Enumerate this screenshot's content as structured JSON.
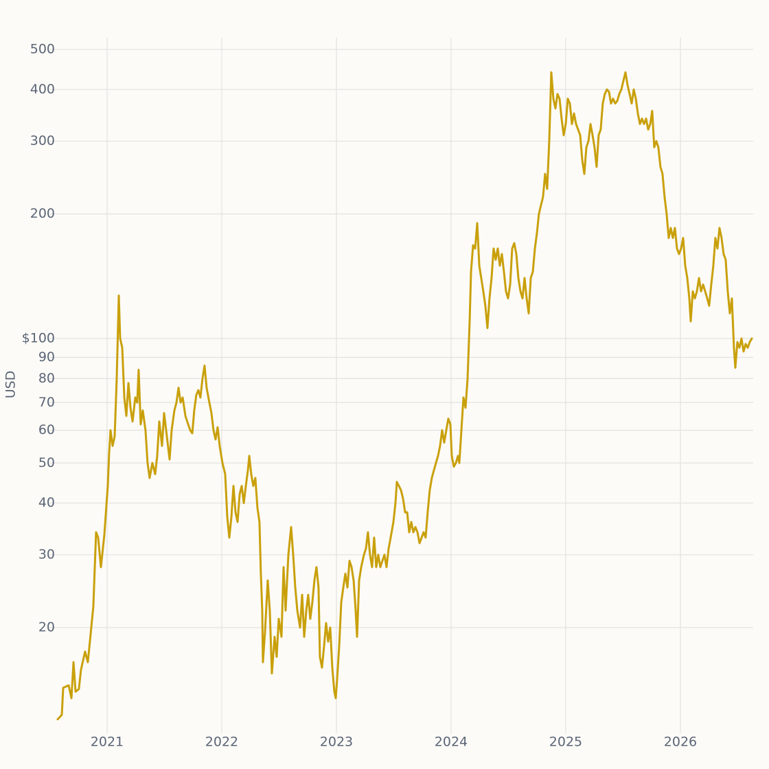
{
  "chart_data": {
    "type": "line",
    "y_label": "USD",
    "log_y": true,
    "grid": true,
    "color": "#c9a00c",
    "xlim": [
      2020.569,
      2026.635
    ],
    "xticks": [
      2021,
      2022,
      2023,
      2024,
      2025,
      2026
    ],
    "ylim": [
      11.36,
      533.4
    ],
    "yticks": [
      20,
      30,
      40,
      50,
      60,
      70,
      80,
      90,
      {
        "value": 100,
        "label": "$100"
      },
      200,
      300,
      400,
      500
    ],
    "x": [
      2020.569,
      2020.605,
      2020.617,
      2020.665,
      2020.689,
      2020.707,
      2020.725,
      2020.754,
      2020.772,
      2020.808,
      2020.832,
      2020.85,
      2020.88,
      2020.904,
      2020.922,
      2020.946,
      2020.976,
      2021.006,
      2021.018,
      2021.03,
      2021.048,
      2021.066,
      2021.084,
      2021.102,
      2021.114,
      2021.132,
      2021.15,
      2021.168,
      2021.186,
      2021.204,
      2021.222,
      2021.246,
      2021.263,
      2021.275,
      2021.293,
      2021.311,
      2021.335,
      2021.353,
      2021.371,
      2021.395,
      2021.419,
      2021.437,
      2021.455,
      2021.479,
      2021.497,
      2021.515,
      2021.545,
      2021.563,
      2021.587,
      2021.605,
      2021.623,
      2021.641,
      2021.659,
      2021.683,
      2021.707,
      2021.725,
      2021.743,
      2021.76,
      2021.778,
      2021.796,
      2021.814,
      2021.832,
      2021.85,
      2021.868,
      2021.892,
      2021.91,
      2021.928,
      2021.946,
      2021.964,
      2021.982,
      2022.006,
      2022.03,
      2022.048,
      2022.066,
      2022.084,
      2022.102,
      2022.12,
      2022.138,
      2022.156,
      2022.174,
      2022.192,
      2022.21,
      2022.228,
      2022.24,
      2022.257,
      2022.275,
      2022.293,
      2022.311,
      2022.329,
      2022.341,
      2022.353,
      2022.359,
      2022.377,
      2022.401,
      2022.419,
      2022.437,
      2022.461,
      2022.479,
      2022.497,
      2022.521,
      2022.539,
      2022.557,
      2022.581,
      2022.605,
      2022.623,
      2022.641,
      2022.659,
      2022.683,
      2022.701,
      2022.719,
      2022.737,
      2022.754,
      2022.772,
      2022.79,
      2022.808,
      2022.826,
      2022.844,
      2022.856,
      2022.874,
      2022.892,
      2022.91,
      2022.928,
      2022.946,
      2022.964,
      2022.982,
      2022.994,
      2023.006,
      2023.024,
      2023.042,
      2023.06,
      2023.078,
      2023.096,
      2023.114,
      2023.132,
      2023.15,
      2023.168,
      2023.18,
      2023.198,
      2023.216,
      2023.24,
      2023.257,
      2023.275,
      2023.293,
      2023.311,
      2023.329,
      2023.347,
      2023.365,
      2023.383,
      2023.401,
      2023.419,
      2023.437,
      2023.455,
      2023.473,
      2023.497,
      2023.515,
      2023.527,
      2023.545,
      2023.563,
      2023.581,
      2023.599,
      2023.617,
      2023.635,
      2023.653,
      2023.671,
      2023.689,
      2023.707,
      2023.725,
      2023.743,
      2023.76,
      2023.778,
      2023.796,
      2023.814,
      2023.832,
      2023.85,
      2023.868,
      2023.886,
      2023.904,
      2023.922,
      2023.94,
      2023.958,
      2023.976,
      2023.994,
      2024.006,
      2024.024,
      2024.042,
      2024.06,
      2024.072,
      2024.09,
      2024.108,
      2024.126,
      2024.144,
      2024.162,
      2024.174,
      2024.192,
      2024.21,
      2024.228,
      2024.246,
      2024.263,
      2024.281,
      2024.299,
      2024.317,
      2024.335,
      2024.353,
      2024.371,
      2024.389,
      2024.407,
      2024.425,
      2024.443,
      2024.461,
      2024.479,
      2024.497,
      2024.515,
      2024.533,
      2024.551,
      2024.569,
      2024.587,
      2024.605,
      2024.623,
      2024.641,
      2024.659,
      2024.677,
      2024.695,
      2024.713,
      2024.731,
      2024.749,
      2024.766,
      2024.784,
      2024.802,
      2024.82,
      2024.838,
      2024.856,
      2024.874,
      2024.892,
      2024.91,
      2024.928,
      2024.946,
      2024.964,
      2024.982,
      2025.0,
      2025.018,
      2025.036,
      2025.054,
      2025.072,
      2025.09,
      2025.108,
      2025.126,
      2025.144,
      2025.162,
      2025.18,
      2025.198,
      2025.216,
      2025.234,
      2025.251,
      2025.269,
      2025.287,
      2025.305,
      2025.323,
      2025.341,
      2025.359,
      2025.377,
      2025.395,
      2025.413,
      2025.431,
      2025.449,
      2025.467,
      2025.485,
      2025.503,
      2025.521,
      2025.539,
      2025.557,
      2025.575,
      2025.593,
      2025.611,
      2025.629,
      2025.647,
      2025.665,
      2025.683,
      2025.701,
      2025.719,
      2025.737,
      2025.754,
      2025.772,
      2025.79,
      2025.808,
      2025.826,
      2025.844,
      2025.862,
      2025.88,
      2025.898,
      2025.916,
      2025.934,
      2025.952,
      2025.97,
      2025.988,
      2026.006,
      2026.024,
      2026.042,
      2026.06,
      2026.078,
      2026.09,
      2026.108,
      2026.126,
      2026.144,
      2026.162,
      2026.18,
      2026.198,
      2026.216,
      2026.234,
      2026.251,
      2026.269,
      2026.287,
      2026.305,
      2026.323,
      2026.341,
      2026.359,
      2026.377,
      2026.395,
      2026.413,
      2026.431,
      2026.449,
      2026.467,
      2026.479,
      2026.497,
      2026.515,
      2026.533,
      2026.551,
      2026.569,
      2026.587,
      2026.605,
      2026.623
    ],
    "values": [
      12,
      12.3,
      14.3,
      14.5,
      13.5,
      16.5,
      14,
      14.2,
      15.8,
      17.5,
      16.5,
      18.5,
      22.5,
      34,
      33,
      28,
      33.5,
      44,
      53,
      60,
      55,
      58,
      80,
      127,
      100,
      95,
      72,
      65,
      78,
      68,
      63,
      72,
      70,
      84,
      62,
      67,
      60,
      50,
      46,
      50,
      47,
      52,
      63,
      55,
      66,
      60,
      51,
      60,
      67,
      70,
      76,
      70,
      72,
      65,
      62,
      60,
      59,
      67,
      73,
      75,
      72,
      80,
      86,
      76,
      70,
      66,
      60,
      57,
      61,
      55,
      50,
      47,
      37,
      33,
      37,
      44,
      38,
      36,
      42,
      44,
      40,
      44,
      48,
      52,
      47,
      44,
      46,
      39,
      36,
      27,
      22,
      16.5,
      19.5,
      26,
      22,
      15.5,
      19,
      17,
      21,
      19,
      28,
      22,
      30,
      35,
      30,
      25,
      22,
      20,
      24,
      19,
      22,
      24,
      21,
      23,
      26,
      28,
      25,
      17,
      16,
      18,
      20.5,
      18.5,
      20,
      16,
      14,
      13.5,
      15,
      18,
      23,
      25,
      27,
      25,
      29,
      28,
      26,
      22,
      19,
      26,
      28,
      30,
      31,
      34,
      30,
      28,
      33,
      28,
      30,
      28,
      29,
      30,
      28,
      31,
      33,
      36,
      40,
      45,
      44,
      43,
      41,
      38,
      38,
      34,
      36,
      34,
      35,
      34,
      32,
      33,
      34,
      33,
      38,
      43,
      46,
      48,
      50,
      52,
      55,
      60,
      56,
      60,
      64,
      62,
      52,
      49,
      50,
      52,
      50,
      60,
      72,
      68,
      80,
      110,
      145,
      168,
      165,
      190,
      150,
      140,
      130,
      120,
      106,
      125,
      140,
      165,
      155,
      165,
      150,
      160,
      145,
      130,
      125,
      135,
      165,
      170,
      160,
      140,
      130,
      125,
      140,
      125,
      115,
      140,
      145,
      165,
      180,
      200,
      210,
      220,
      250,
      230,
      300,
      440,
      380,
      360,
      390,
      380,
      340,
      310,
      330,
      380,
      370,
      330,
      350,
      330,
      320,
      310,
      270,
      250,
      290,
      300,
      330,
      310,
      290,
      260,
      310,
      320,
      370,
      390,
      400,
      395,
      370,
      380,
      370,
      375,
      390,
      400,
      420,
      440,
      410,
      390,
      370,
      400,
      380,
      350,
      330,
      340,
      330,
      340,
      320,
      330,
      355,
      290,
      300,
      290,
      260,
      250,
      220,
      200,
      175,
      185,
      175,
      185,
      165,
      160,
      165,
      175,
      150,
      140,
      125,
      110,
      130,
      125,
      130,
      140,
      130,
      135,
      130,
      125,
      120,
      135,
      150,
      175,
      165,
      185,
      175,
      160,
      155,
      130,
      115,
      125,
      95,
      85,
      98,
      95,
      100,
      93,
      97,
      95,
      98,
      100
    ]
  }
}
